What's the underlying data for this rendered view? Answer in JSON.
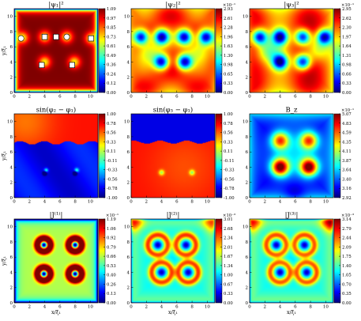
{
  "chart_data": [
    {
      "type": "heatmap",
      "title": "|ψ₁|²",
      "ylabel": "y/ξ₁",
      "xlabel": "",
      "xlim": [
        0,
        11
      ],
      "ylim": [
        0,
        11
      ],
      "xticks": [
        "0",
        "2",
        "4",
        "6",
        "8",
        "10"
      ],
      "yticks": [
        "0",
        "2",
        "4",
        "6",
        "8",
        "10"
      ],
      "colorbar": {
        "multiplier": "",
        "ticks": [
          "0.00",
          "0.12",
          "0.24",
          "0.36",
          "0.49",
          "0.61",
          "0.73",
          "0.85",
          "0.97",
          "1.09"
        ],
        "range": [
          0.0,
          1.09
        ]
      },
      "field": "psi1",
      "vortices": [
        [
          4.0,
          4.0
        ],
        [
          7.9,
          4.0
        ],
        [
          1.1,
          7.2
        ],
        [
          4.0,
          7.3
        ],
        [
          6.9,
          7.3
        ],
        [
          10.1,
          7.1
        ]
      ],
      "markers": [
        {
          "shape": "circle",
          "x": 0.9,
          "y": 7.1
        },
        {
          "shape": "square",
          "x": 4.0,
          "y": 7.3
        },
        {
          "shape": "square",
          "x": 5.5,
          "y": 7.3
        },
        {
          "shape": "circle",
          "x": 6.9,
          "y": 7.3
        },
        {
          "shape": "square",
          "x": 10.1,
          "y": 7.1
        },
        {
          "shape": "square",
          "x": 3.6,
          "y": 3.6
        },
        {
          "shape": "square",
          "x": 7.6,
          "y": 3.6
        }
      ]
    },
    {
      "type": "heatmap",
      "title": "|ψ₂|²",
      "xlim": [
        0,
        11
      ],
      "ylim": [
        0,
        11
      ],
      "xticks": [
        "0",
        "2",
        "4",
        "6",
        "8",
        "10"
      ],
      "yticks": [
        "0",
        "2",
        "4",
        "6",
        "8",
        "10"
      ],
      "colorbar": {
        "multiplier": "×10⁻¹",
        "ticks": [
          "0.00",
          "0.33",
          "0.65",
          "0.98",
          "1.30",
          "1.63",
          "1.96",
          "2.28",
          "2.61",
          "2.93"
        ],
        "range": [
          0.0,
          0.293
        ]
      },
      "field": "psi2"
    },
    {
      "type": "heatmap",
      "title": "|ψ₃|²",
      "xlim": [
        0,
        11
      ],
      "ylim": [
        0,
        11
      ],
      "xticks": [
        "0",
        "2",
        "4",
        "6",
        "8",
        "10"
      ],
      "yticks": [
        "0",
        "2",
        "4",
        "6",
        "8",
        "10"
      ],
      "colorbar": {
        "multiplier": "×10⁻¹",
        "ticks": [
          "0.00",
          "0.33",
          "0.66",
          "0.98",
          "1.31",
          "1.64",
          "1.97",
          "2.30",
          "2.62",
          "2.95"
        ],
        "range": [
          0.0,
          0.295
        ]
      },
      "field": "psi3"
    },
    {
      "type": "heatmap",
      "title": "sin(φ₂ − φ₁)",
      "ylabel": "y/ξ₁",
      "xlim": [
        0,
        11
      ],
      "ylim": [
        0,
        11
      ],
      "xticks": [
        "0",
        "2",
        "4",
        "6",
        "8",
        "10"
      ],
      "yticks": [
        "0",
        "2",
        "4",
        "6",
        "8",
        "10"
      ],
      "colorbar": {
        "multiplier": "",
        "ticks": [
          "-1.00",
          "-0.78",
          "-0.56",
          "-0.33",
          "-0.11",
          "0.11",
          "0.33",
          "0.56",
          "0.78",
          "1.00"
        ],
        "range": [
          -1.0,
          1.0
        ]
      },
      "field": "sin21"
    },
    {
      "type": "heatmap",
      "title": "sin(φ₃ − φ₁)",
      "xlim": [
        0,
        11
      ],
      "ylim": [
        0,
        11
      ],
      "xticks": [
        "0",
        "2",
        "4",
        "6",
        "8",
        "10"
      ],
      "yticks": [
        "0",
        "2",
        "4",
        "6",
        "8",
        "10"
      ],
      "colorbar": {
        "multiplier": "",
        "ticks": [
          "-1.00",
          "-0.78",
          "-0.56",
          "-0.33",
          "-0.11",
          "0.11",
          "0.33",
          "0.56",
          "0.78",
          "1.00"
        ],
        "range": [
          -1.0,
          1.0
        ]
      },
      "field": "sin31"
    },
    {
      "type": "heatmap",
      "title": "B_z",
      "xlim": [
        0,
        11
      ],
      "ylim": [
        0,
        11
      ],
      "xticks": [
        "0",
        "2",
        "4",
        "6",
        "8",
        "10"
      ],
      "yticks": [
        "0",
        "2",
        "4",
        "6",
        "8",
        "10"
      ],
      "colorbar": {
        "multiplier": "×10⁻¹",
        "ticks": [
          "2.92",
          "3.16",
          "3.40",
          "3.64",
          "3.87",
          "4.11",
          "4.35",
          "4.59",
          "4.83",
          "5.07"
        ],
        "range": [
          0.292,
          0.507
        ]
      },
      "field": "bz"
    },
    {
      "type": "heatmap",
      "title": "|J⁽¹⁾|",
      "ylabel": "y/ξ₁",
      "xlabel": "x/ξ₁",
      "xlim": [
        0,
        11
      ],
      "ylim": [
        0,
        11
      ],
      "xticks": [
        "0",
        "2",
        "4",
        "6",
        "8",
        "10"
      ],
      "yticks": [
        "0",
        "2",
        "4",
        "6",
        "8",
        "10"
      ],
      "colorbar": {
        "multiplier": "×10⁻¹",
        "ticks": [
          "0.00",
          "0.13",
          "0.26",
          "0.40",
          "0.53",
          "0.66",
          "0.79",
          "0.92",
          "1.06",
          "1.19"
        ],
        "range": [
          0.0,
          0.119
        ]
      },
      "field": "j1"
    },
    {
      "type": "heatmap",
      "title": "|J⁽²⁾|",
      "xlabel": "x/ξ₁",
      "xlim": [
        0,
        11
      ],
      "ylim": [
        0,
        11
      ],
      "xticks": [
        "0",
        "2",
        "4",
        "6",
        "8",
        "10"
      ],
      "yticks": [
        "0",
        "2",
        "4",
        "6",
        "8",
        "10"
      ],
      "colorbar": {
        "multiplier": "×10⁻³",
        "ticks": [
          "0.00",
          "0.33",
          "0.67",
          "1.00",
          "1.34",
          "1.67",
          "2.01",
          "2.34",
          "2.68",
          "3.01"
        ],
        "range": [
          0.0,
          0.00301
        ]
      },
      "field": "j2"
    },
    {
      "type": "heatmap",
      "title": "|J⁽³⁾|",
      "xlabel": "x/ξ₁",
      "xlim": [
        0,
        11
      ],
      "ylim": [
        0,
        11
      ],
      "xticks": [
        "0",
        "2",
        "4",
        "6",
        "8",
        "10"
      ],
      "yticks": [
        "0",
        "2",
        "4",
        "6",
        "8",
        "10"
      ],
      "colorbar": {
        "multiplier": "×10⁻³",
        "ticks": [
          "0.00",
          "0.35",
          "0.70",
          "1.05",
          "1.40",
          "1.75",
          "2.09",
          "2.44",
          "2.79",
          "3.14"
        ],
        "range": [
          0.0,
          0.00314
        ]
      },
      "field": "j3"
    }
  ],
  "colormap": [
    "#00007f",
    "#0000ff",
    "#007fff",
    "#00ffff",
    "#7fff7f",
    "#ffff00",
    "#ff7f00",
    "#ff0000",
    "#7f0000"
  ]
}
